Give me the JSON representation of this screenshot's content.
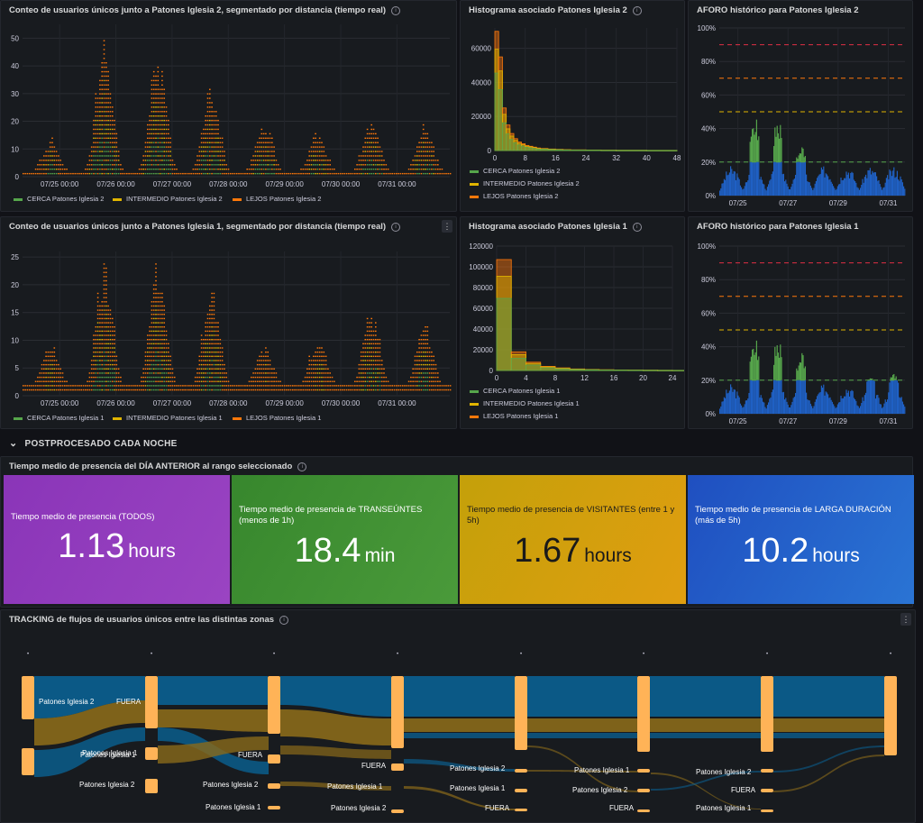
{
  "panels": {
    "p1": {
      "title": "Conteo de usuarios únicos junto a Patones Iglesia 2, segmentado por distancia (tiempo real)"
    },
    "h2": {
      "title": "Histograma asociado Patones Iglesia 2"
    },
    "a2": {
      "title": "AFORO histórico para Patones Iglesia 2"
    },
    "p2": {
      "title": "Conteo de usuarios únicos junto a Patones Iglesia 1, segmentado por distancia (tiempo real)"
    },
    "h1": {
      "title": "Histograma asociado Patones Iglesia 1"
    },
    "a1": {
      "title": "AFORO histórico para Patones Iglesia 1"
    },
    "stats": {
      "title": "Tiempo medio de presencia del DÍA ANTERIOR al rango seleccionado"
    },
    "sankey": {
      "title": "TRACKING de flujos de usuarios únicos entre las distintas zonas"
    }
  },
  "row_header": {
    "chevron": "⌄",
    "label": "POSTPROCESADO CADA NOCHE"
  },
  "icons": {
    "info": "i",
    "menu": "⋮"
  },
  "colors": {
    "cerca": "#56a64b",
    "intermedio": "#e0b400",
    "lejos": "#ff780a",
    "blue": "#1f60c4",
    "purple": "#8f3bb8",
    "green": "#37872d",
    "yellow": "#d4a60e",
    "dark_blue": "#1f60c4"
  },
  "stats": [
    {
      "label": "Tiempo medio de presencia (TODOS)",
      "value": "1.13",
      "unit": "hours",
      "color": "#8f3bb8",
      "text": "#ffffff"
    },
    {
      "label": "Tiempo medio de presencia de TRANSEÚNTES (menos de 1h)",
      "value": "18.4",
      "unit": "min",
      "color": "#37872d",
      "text": "#ffffff"
    },
    {
      "label": "Tiempo medio de presencia de VISITANTES (entre 1 y 5h)",
      "value": "1.67",
      "unit": "hours",
      "color": "#d9a90b",
      "text": "#1a1a1a"
    },
    {
      "label": "Tiempo medio de presencia de LARGA DURACIÓN (más de 5h)",
      "value": "10.2",
      "unit": "hours",
      "color": "#1f60c4",
      "text": "#ffffff"
    }
  ],
  "chart_data": [
    {
      "id": "ts2",
      "type": "scatter",
      "title": "Conteo de usuarios únicos junto a Patones Iglesia 2, segmentado por distancia (tiempo real)",
      "x_ticks": [
        "07/25 00:00",
        "07/26 00:00",
        "07/27 00:00",
        "07/28 00:00",
        "07/29 00:00",
        "07/30 00:00",
        "07/31 00:00"
      ],
      "y_ticks": [
        0,
        10,
        20,
        30,
        40,
        50
      ],
      "ylim": [
        0,
        55
      ],
      "peaks": [
        12,
        50,
        45,
        32,
        18,
        15,
        20,
        18
      ],
      "legend": [
        "CERCA Patones Iglesia 2",
        "INTERMEDIO Patones Iglesia 2",
        "LEJOS Patones Iglesia 2"
      ]
    },
    {
      "id": "ts1",
      "type": "scatter",
      "title": "Conteo de usuarios únicos junto a Patones Iglesia 1, segmentado por distancia (tiempo real)",
      "x_ticks": [
        "07/25 00:00",
        "07/26 00:00",
        "07/27 00:00",
        "07/28 00:00",
        "07/29 00:00",
        "07/30 00:00",
        "07/31 00:00"
      ],
      "y_ticks": [
        0,
        5,
        10,
        15,
        20,
        25
      ],
      "ylim": [
        0,
        26
      ],
      "peaks": [
        8,
        23,
        23,
        18,
        7,
        9,
        14,
        11
      ],
      "legend": [
        "CERCA Patones Iglesia 1",
        "INTERMEDIO Patones Iglesia 1",
        "LEJOS Patones Iglesia 1"
      ]
    },
    {
      "id": "hist2",
      "type": "bar",
      "title": "Histograma asociado Patones Iglesia 2",
      "x_ticks": [
        0,
        8,
        16,
        24,
        32,
        40,
        48
      ],
      "y_ticks": [
        0,
        20000,
        40000,
        60000
      ],
      "ylim": [
        0,
        72000
      ],
      "bins_x": [
        0,
        1,
        2,
        3,
        4,
        5,
        6,
        7,
        8,
        9,
        10,
        11,
        12,
        14,
        16,
        18,
        20,
        24,
        28,
        32,
        40
      ],
      "values": [
        70000,
        55000,
        25000,
        15000,
        10000,
        7000,
        5000,
        4000,
        3000,
        2500,
        2000,
        1500,
        1200,
        900,
        700,
        500,
        400,
        300,
        200,
        150,
        100
      ],
      "legend": [
        "CERCA Patones Iglesia 2",
        "INTERMEDIO Patones Iglesia 2",
        "LEJOS Patones Iglesia 2"
      ]
    },
    {
      "id": "hist1",
      "type": "bar",
      "title": "Histograma asociado Patones Iglesia 1",
      "x_ticks": [
        0,
        4,
        8,
        12,
        16,
        20,
        24
      ],
      "y_ticks": [
        0,
        20000,
        40000,
        60000,
        80000,
        100000,
        120000
      ],
      "ylim": [
        0,
        120000
      ],
      "bins_x": [
        0,
        2,
        4,
        6,
        8,
        10,
        12,
        14,
        16,
        18,
        20,
        22,
        24
      ],
      "values": [
        107000,
        18000,
        8000,
        4000,
        2500,
        1500,
        1000,
        700,
        500,
        400,
        300,
        200,
        150
      ],
      "legend": [
        "CERCA Patones Iglesia 1",
        "INTERMEDIO Patones Iglesia 1",
        "LEJOS Patones Iglesia 1"
      ]
    },
    {
      "id": "aforo2",
      "type": "area",
      "title": "AFORO histórico para Patones Iglesia 2",
      "x_ticks": [
        "07/25",
        "07/27",
        "07/29",
        "07/31"
      ],
      "y_ticks": [
        "0%",
        "20%",
        "40%",
        "60%",
        "80%",
        "100%"
      ],
      "ylim": [
        0,
        100
      ],
      "thresholds": [
        20,
        50,
        70,
        90
      ],
      "peaks": [
        18,
        50,
        48,
        30,
        18,
        18,
        18,
        18
      ]
    },
    {
      "id": "aforo1",
      "type": "area",
      "title": "AFORO histórico para Patones Iglesia 1",
      "x_ticks": [
        "07/25",
        "07/27",
        "07/29",
        "07/31"
      ],
      "y_ticks": [
        "0%",
        "20%",
        "40%",
        "60%",
        "80%",
        "100%"
      ],
      "ylim": [
        0,
        100
      ],
      "thresholds": [
        20,
        50,
        70,
        90
      ],
      "peaks": [
        18,
        48,
        47,
        38,
        17,
        19,
        22,
        25
      ]
    }
  ],
  "sankey_labels": [
    "Patones Iglesia 2",
    "FUERA",
    "Patones Iglesia 1",
    "Patones Iglesia 2",
    "Patones Iglesia 1",
    "FUERA",
    "Patones Iglesia 2",
    "Patones Iglesia 1",
    "FUERA",
    "Patones Iglesia 1",
    "Patones Iglesia 2",
    "Patones Iglesia 2",
    "Patones Iglesia 1",
    "FUERA",
    "Patones Iglesia 1",
    "Patones Iglesia 2",
    "FUERA",
    "Patones Iglesia 2",
    "FUERA",
    "Patones Iglesia 1"
  ]
}
